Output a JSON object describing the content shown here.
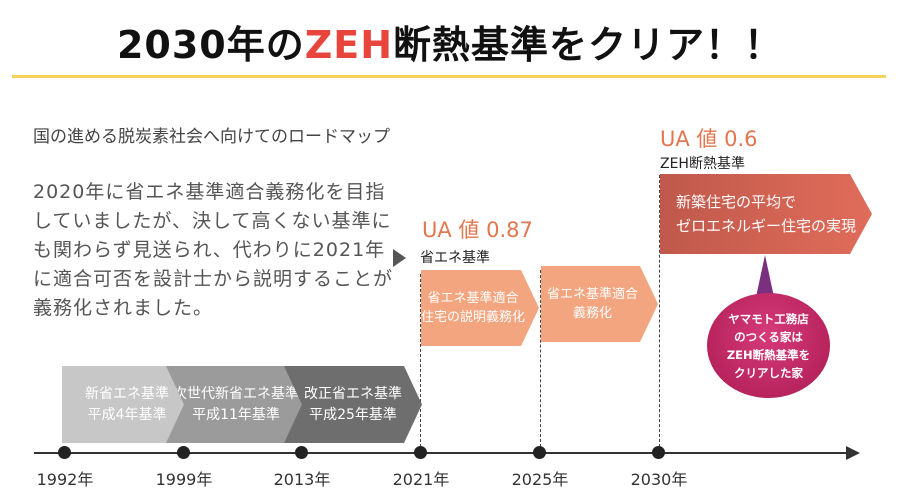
{
  "header": {
    "title_prefix": "2030年の",
    "title_accent": "ZEH",
    "title_suffix": "断熱基準をクリア！！"
  },
  "roadmap_title": "国の進める脱炭素社会へ向けてのロードマップ",
  "description": "2020年に省エネ基準適合義務化を目指していましたが、決して高くない基準にも関わらず見送られ、代わりに2021年に適合可否を設計士から説明することが義務化されました。",
  "ua_087": {
    "value": "UA 値 0.87",
    "label": "省エネ基準"
  },
  "ua_06": {
    "value": "UA 値 0.6",
    "label": "ZEH断熱基準"
  },
  "arrows": {
    "a2021": {
      "line1": "省エネ基準適合",
      "line2": "住宅の説明義務化"
    },
    "a2025": {
      "line1": "省エネ基準適合",
      "line2": "義務化"
    },
    "a2030": {
      "line1": "新築住宅の平均で",
      "line2": "ゼロエネルギー住宅の実現"
    }
  },
  "past_standards": [
    {
      "line1": "新省エネ基準",
      "line2": "平成4年基準"
    },
    {
      "line1": "次世代新省エネ基準",
      "line2": "平成11年基準"
    },
    {
      "line1": "改正省エネ基準",
      "line2": "平成25年基準"
    }
  ],
  "balloon": {
    "line1": "ヤマモト工務店",
    "line2": "のつくる家は",
    "line3": "ZEH断熱基準を",
    "line4": "クリアした家"
  },
  "timeline_years": [
    "1992年",
    "1999年",
    "2013年",
    "2021年",
    "2025年",
    "2030年"
  ],
  "colors": {
    "accent_red": "#e8453c",
    "gold": "#f3d35a",
    "orange": "#f2a57f",
    "brick": "#c0594b",
    "magenta": "#b8245e"
  }
}
